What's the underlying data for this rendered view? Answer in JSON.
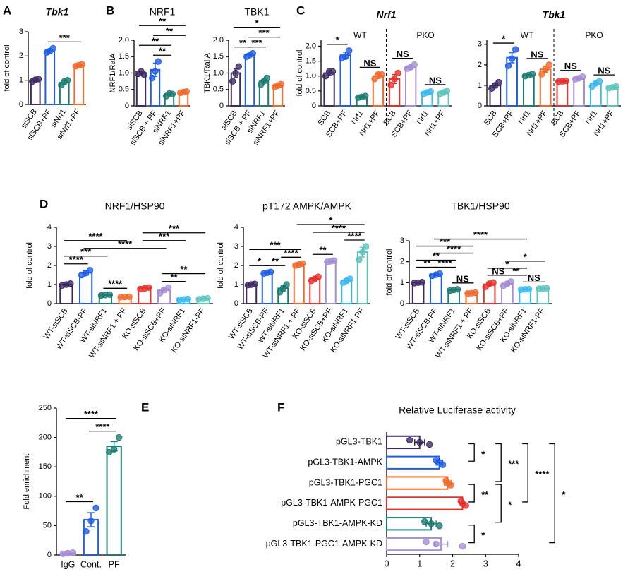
{
  "chart_data": [
    {
      "type": "bar",
      "panel": "A",
      "title": "Tbk1",
      "ylabel": "fold of control",
      "categories": [
        "siSCB",
        "siSCB+PF",
        "siNrf1",
        "siNrf1+PF"
      ],
      "values": [
        1.0,
        2.2,
        0.9,
        1.6
      ],
      "errors": [
        0.05,
        0.1,
        0.08,
        0.03
      ],
      "points": [
        [
          0.95,
          1.02,
          1.05
        ],
        [
          2.15,
          2.2,
          2.32
        ],
        [
          0.8,
          0.95,
          1.0
        ],
        [
          1.58,
          1.62,
          1.65
        ]
      ],
      "colors": [
        "#3d2a63",
        "#1f5ee6",
        "#1b7c73",
        "#f06a2c"
      ],
      "ylim": [
        0,
        3
      ],
      "yticks": [
        0,
        1,
        2,
        3
      ],
      "annotations": [
        "***"
      ],
      "annotation_color": "#e8242a"
    },
    {
      "type": "bar",
      "panel": "B",
      "title": "NRF1",
      "ylabel": "NRF1/RalA",
      "categories": [
        "siSCB",
        "siSCB + PF",
        "siNRF1",
        "siNRF1+PF"
      ],
      "values": [
        1.0,
        1.1,
        0.35,
        0.42
      ],
      "errors": [
        0.05,
        0.2,
        0.04,
        0.02
      ],
      "points": [
        [
          0.98,
          1.05,
          0.95
        ],
        [
          0.85,
          1.05,
          1.35
        ],
        [
          0.3,
          0.38,
          0.36
        ],
        [
          0.4,
          0.42,
          0.44
        ]
      ],
      "colors": [
        "#3d2a63",
        "#1f5ee6",
        "#1b7c73",
        "#f06a2c"
      ],
      "ylim": [
        0,
        2
      ],
      "yticks": [
        0,
        0.5,
        {
          "value": 1,
          "label": "1.0"
        },
        1.5,
        {
          "value": 2,
          "label": "2.0"
        }
      ],
      "annotations": [
        "**",
        "**",
        "**",
        "**"
      ],
      "annotation_color": "#e8242a"
    },
    {
      "type": "bar",
      "title": "TBK1",
      "ylabel": "TBK1/Ral A",
      "categories": [
        "siSCB",
        "siSCB + PF",
        "siNRF1",
        "siNRF1+PF"
      ],
      "values": [
        1.0,
        1.55,
        0.75,
        0.62
      ],
      "errors": [
        0.12,
        0.03,
        0.06,
        0.03
      ],
      "points": [
        [
          0.75,
          1.0,
          1.2
        ],
        [
          1.5,
          1.55,
          1.6
        ],
        [
          0.65,
          0.75,
          0.85
        ],
        [
          0.58,
          0.62,
          0.66
        ]
      ],
      "colors": [
        "#3d2a63",
        "#1f5ee6",
        "#1b7c73",
        "#f06a2c"
      ],
      "ylim": [
        0,
        2
      ],
      "yticks": [
        0,
        0.5,
        {
          "value": 1,
          "label": "1.0"
        },
        1.5,
        {
          "value": 2,
          "label": "2.0"
        }
      ],
      "annotations": [
        "**",
        "***",
        "***",
        "*"
      ],
      "annotation_color": "#e8242a"
    },
    {
      "type": "bar",
      "panel": "C",
      "title": "Nrf1",
      "ylabel": "fold of control",
      "categories": [
        "SCB",
        "SCB+PF",
        "Nrf1",
        "Nrf1+PF",
        "SCB",
        "SCB+PF",
        "Nrf1",
        "Nrf1+PF"
      ],
      "groups": [
        {
          "label": "WT",
          "color": "#1a237e"
        },
        {
          "label": "PKO",
          "color": "#b71c1c"
        }
      ],
      "values": [
        1.1,
        1.7,
        0.3,
        1.0,
        0.9,
        1.3,
        0.45,
        0.45
      ],
      "errors": [
        0.08,
        0.1,
        0.03,
        0.08,
        0.15,
        0.06,
        0.04,
        0.05
      ],
      "points": [
        [
          1.0,
          1.15,
          1.15
        ],
        [
          1.6,
          1.65,
          1.85
        ],
        [
          0.28,
          0.3,
          0.33
        ],
        [
          0.9,
          1.05,
          1.05
        ],
        [
          0.7,
          0.9,
          1.1
        ],
        [
          1.25,
          1.3,
          1.38
        ],
        [
          0.4,
          0.45,
          0.48
        ],
        [
          0.4,
          0.45,
          0.5
        ]
      ],
      "colors": [
        "#3d2a63",
        "#1f5ee6",
        "#1b7c73",
        "#f06a2c",
        "#e8302a",
        "#a68fd6",
        "#3bb8ee",
        "#5cc4bb"
      ],
      "ylim": [
        0,
        2.2
      ],
      "yticks": [
        0,
        0.5,
        {
          "value": 1,
          "label": "1.0"
        },
        1.5,
        {
          "value": 2,
          "label": "2.0"
        }
      ],
      "annotations": [
        "*",
        "NS",
        "NS",
        "NS"
      ],
      "annotation_color": "#e8242a"
    },
    {
      "type": "bar",
      "title": "Tbk1",
      "categories": [
        "SCB",
        "SCB+PF",
        "Nrf1",
        "Nrf1+PF",
        "SCB",
        "SCB+PF",
        "Nrf1",
        "Nrf1+PF"
      ],
      "groups": [
        {
          "label": "WT",
          "color": "#1a237e"
        },
        {
          "label": "PKO",
          "color": "#b71c1c"
        }
      ],
      "values": [
        1.0,
        2.35,
        1.5,
        1.78,
        1.2,
        1.35,
        1.1,
        0.9
      ],
      "errors": [
        0.1,
        0.25,
        0.04,
        0.15,
        0.03,
        0.05,
        0.08,
        0.03
      ],
      "points": [
        [
          0.85,
          1.0,
          1.15
        ],
        [
          1.95,
          2.3,
          2.75
        ],
        [
          1.45,
          1.5,
          1.55
        ],
        [
          1.55,
          1.8,
          2.0
        ],
        [
          1.18,
          1.2,
          1.22
        ],
        [
          1.3,
          1.35,
          1.42
        ],
        [
          0.95,
          1.1,
          1.2
        ],
        [
          0.87,
          0.9,
          0.95
        ]
      ],
      "colors": [
        "#3d2a63",
        "#1f5ee6",
        "#1b7c73",
        "#f06a2c",
        "#e8302a",
        "#a68fd6",
        "#3bb8ee",
        "#5cc4bb"
      ],
      "ylim": [
        0,
        3.2
      ],
      "yticks": [
        0,
        1,
        2,
        3
      ],
      "annotations": [
        "*",
        "NS",
        "NS",
        "NS"
      ],
      "annotation_color": "#e8242a"
    },
    {
      "type": "bar",
      "panel": "D",
      "title": "NRF1/HSP90",
      "ylabel": "fold of control",
      "categories": [
        "WT-siSCB",
        "WT-siSCB-PF",
        "WT-siNRF1",
        "WT-siNRF1 + PF",
        "KO-siSCB",
        "KO-siSCB+PF",
        "KO-siNRF1",
        "KO-siNRF1-PF"
      ],
      "values": [
        1.0,
        1.62,
        0.45,
        0.35,
        0.8,
        0.7,
        0.22,
        0.25
      ],
      "errors": [
        0.05,
        0.12,
        0.02,
        0.02,
        0.04,
        0.1,
        0.02,
        0.02
      ],
      "points": [
        [
          0.95,
          1.0,
          1.05
        ],
        [
          1.5,
          1.6,
          1.75
        ],
        [
          0.43,
          0.45,
          0.47
        ],
        [
          0.34,
          0.35,
          0.36
        ],
        [
          0.76,
          0.8,
          0.84
        ],
        [
          0.55,
          0.72,
          0.83
        ],
        [
          0.2,
          0.22,
          0.24
        ],
        [
          0.23,
          0.25,
          0.27
        ]
      ],
      "colors": [
        "#3d2a63",
        "#1f5ee6",
        "#1b7c73",
        "#f06a2c",
        "#e8302a",
        "#a68fd6",
        "#3bb8ee",
        "#5cc4bb"
      ],
      "ylim": [
        0,
        4
      ],
      "yticks": [
        0,
        1,
        2,
        3,
        4
      ],
      "annotations": [
        "****",
        "****",
        "***",
        "****",
        "****",
        "**",
        "**",
        "***",
        "***"
      ],
      "annotation_color": "#e8242a"
    },
    {
      "type": "bar",
      "title": "pT172 AMPK/AMPK",
      "ylabel": "fold of control",
      "categories": [
        "WT-siSCB",
        "WT-siSCB-PF",
        "WT-siNRF1",
        "WT-siNRF1 + PF",
        "KO-siSCB",
        "KO-siSCB+PF",
        "KO-siNRF1",
        "KO-siNRF1-PF"
      ],
      "values": [
        1.0,
        1.62,
        0.8,
        2.05,
        1.3,
        2.22,
        1.2,
        2.7
      ],
      "errors": [
        0.03,
        0.04,
        0.15,
        0.05,
        0.08,
        0.03,
        0.1,
        0.25
      ],
      "points": [
        [
          0.97,
          1.0,
          1.03
        ],
        [
          1.58,
          1.62,
          1.66
        ],
        [
          0.6,
          0.8,
          1.0
        ],
        [
          2.0,
          2.05,
          2.1
        ],
        [
          1.2,
          1.3,
          1.4
        ],
        [
          2.19,
          2.22,
          2.25
        ],
        [
          1.1,
          1.2,
          1.3
        ],
        [
          2.3,
          2.7,
          3.0
        ]
      ],
      "colors": [
        "#3d2a63",
        "#1f5ee6",
        "#1b7c73",
        "#f06a2c",
        "#e8302a",
        "#a68fd6",
        "#3bb8ee",
        "#5cc4bb"
      ],
      "ylim": [
        0,
        4
      ],
      "yticks": [
        0,
        1,
        2,
        3,
        4
      ],
      "annotations": [
        "*",
        "**",
        "****",
        "**",
        "****",
        "****",
        "***",
        "*"
      ],
      "annotation_color": "#e8242a"
    },
    {
      "type": "bar",
      "title": "TBK1/HSP90",
      "ylabel": "fold of control",
      "categories": [
        "WT-siSCB",
        "WT-siSCB-PF",
        "WT-siNRF1",
        "WT-siNRF1 + PF",
        "KO-siSCB",
        "KO-siSCB+PF",
        "KO-siNRF1",
        "KO-siNRF1-PF"
      ],
      "values": [
        1.0,
        1.38,
        0.65,
        0.5,
        0.92,
        0.95,
        0.68,
        0.72
      ],
      "errors": [
        0.02,
        0.04,
        0.03,
        0.02,
        0.07,
        0.08,
        0.01,
        0.01
      ],
      "points": [
        [
          0.98,
          1.0,
          1.02
        ],
        [
          1.33,
          1.38,
          1.43
        ],
        [
          0.62,
          0.65,
          0.68
        ],
        [
          0.48,
          0.5,
          0.52
        ],
        [
          0.8,
          0.95,
          1.0
        ],
        [
          0.85,
          0.95,
          1.05
        ],
        [
          0.67,
          0.68,
          0.69
        ],
        [
          0.71,
          0.72,
          0.73
        ]
      ],
      "colors": [
        "#3d2a63",
        "#1f5ee6",
        "#1b7c73",
        "#f06a2c",
        "#e8302a",
        "#a68fd6",
        "#3bb8ee",
        "#5cc4bb"
      ],
      "ylim": [
        0,
        3
      ],
      "yticks": [
        0,
        1,
        2,
        3
      ],
      "annotations": [
        "**",
        "****",
        "NS",
        "NS",
        "**",
        "NS",
        "*",
        "*",
        "**",
        "****",
        "***",
        "****"
      ],
      "annotation_color": "#e8242a"
    },
    {
      "type": "bar",
      "panel": "E",
      "ylabel": "Fold enrichment",
      "categories": [
        "IgG",
        "Cont.",
        "PF"
      ],
      "values": [
        3,
        60,
        185
      ],
      "errors": [
        1,
        12,
        8
      ],
      "points": [
        [
          2,
          3,
          4
        ],
        [
          40,
          58,
          80
        ],
        [
          175,
          180,
          200
        ]
      ],
      "colors": [
        "#a68fd6",
        "#1f5ee6",
        "#1b7c73"
      ],
      "ylim": [
        0,
        250
      ],
      "yticks": [
        0,
        50,
        100,
        150,
        200,
        250
      ],
      "annotations": [
        "**",
        "****",
        "****"
      ],
      "annotation_color": "#e8242a"
    },
    {
      "type": "hbar",
      "panel": "F",
      "title": "Relative Luciferase activity",
      "categories": [
        "pGL3-TBK1",
        "pGL3-TBK1-AMPK",
        "pGL3-TBK1-PGC1",
        "pGL3-TBK1-AMPK-PGC1",
        "pGL3-TBK1-AMPK-KD",
        "pGL3-TBK1-PGC1-AMPK-KD"
      ],
      "values": [
        1.0,
        1.6,
        1.85,
        2.3,
        1.35,
        1.65
      ],
      "errors": [
        0.15,
        0.1,
        0.1,
        0.05,
        0.15,
        0.2
      ],
      "points": [
        [
          0.7,
          1.0,
          1.3
        ],
        [
          1.5,
          1.6,
          1.7
        ],
        [
          1.8,
          1.85,
          1.95
        ],
        [
          2.25,
          2.3,
          2.4
        ],
        [
          1.15,
          1.35,
          1.6
        ],
        [
          1.2,
          1.5,
          2.3
        ]
      ],
      "colors": [
        "#3d2a63",
        "#1f5ee6",
        "#f06a2c",
        "#e8302a",
        "#1b7c73",
        "#a68fd6"
      ],
      "xlim": [
        0,
        4
      ],
      "xticks": [
        0,
        1,
        2,
        3,
        4
      ],
      "annotations": [
        "*",
        "**",
        "*",
        "***",
        "*",
        "****",
        "*"
      ],
      "annotation_color": "#e8242a"
    }
  ]
}
